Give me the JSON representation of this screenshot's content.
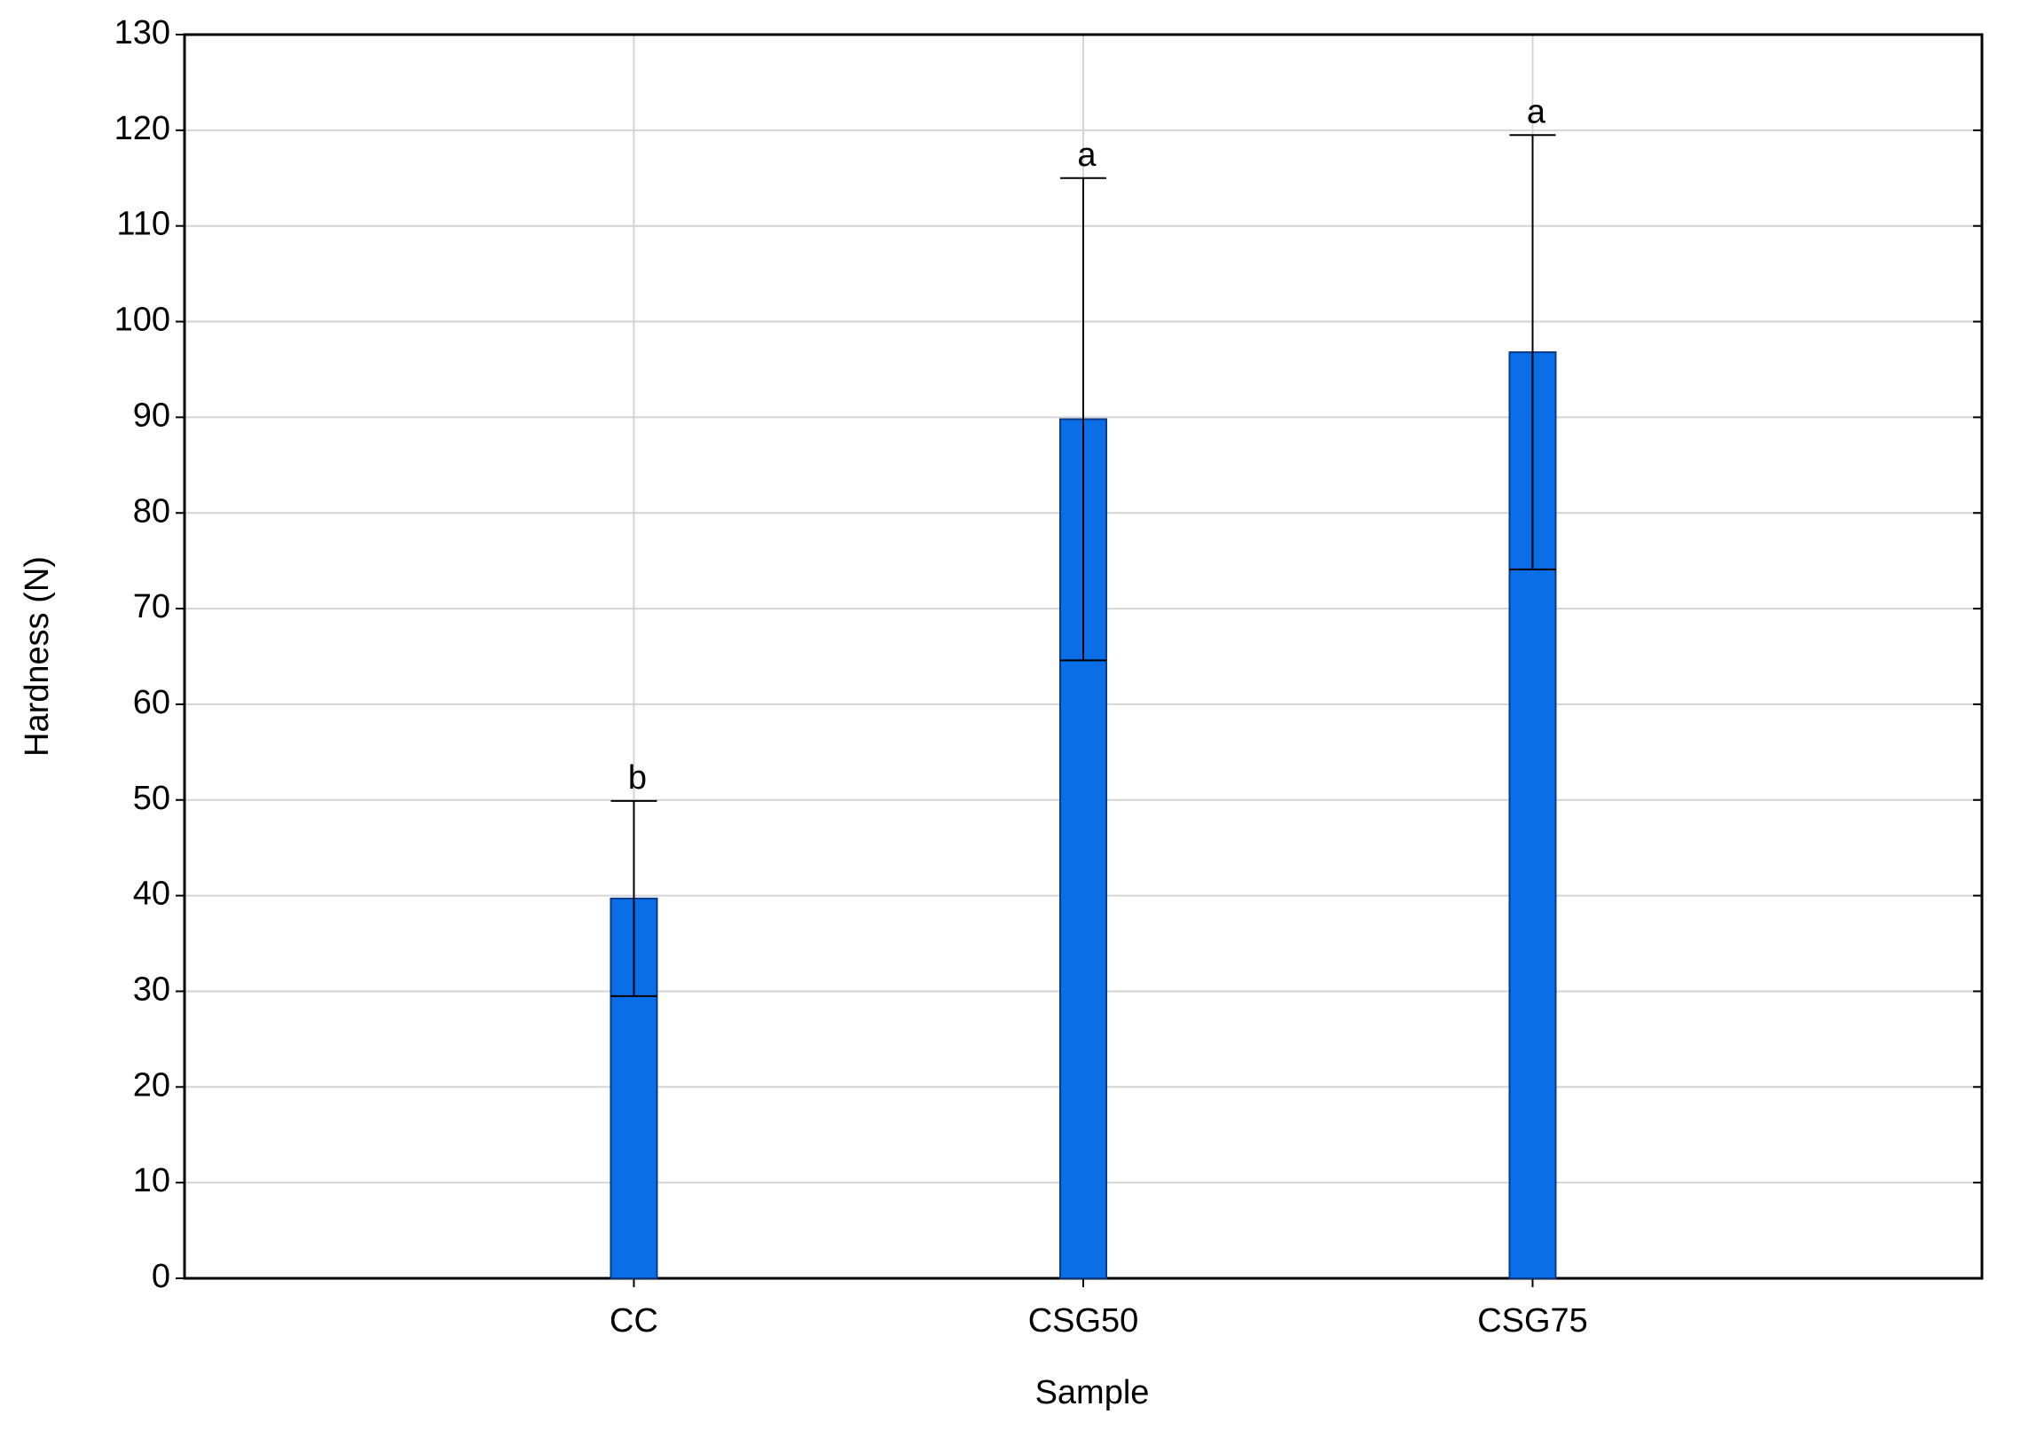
{
  "chart_data": {
    "type": "bar",
    "x_label": "Sample",
    "y_label": "Hardness (N)",
    "categories": [
      "CC",
      "CSG50",
      "CSG75"
    ],
    "values": [
      39.7,
      89.8,
      96.8
    ],
    "errors": [
      10.2,
      25.2,
      22.7
    ],
    "annotations": [
      "b",
      "a",
      "a"
    ],
    "color": "#0a6ee6",
    "ylim": [
      0,
      130
    ],
    "yticks": [
      0,
      10,
      20,
      30,
      40,
      50,
      60,
      70,
      80,
      90,
      100,
      110,
      120,
      130
    ],
    "grid": true
  }
}
